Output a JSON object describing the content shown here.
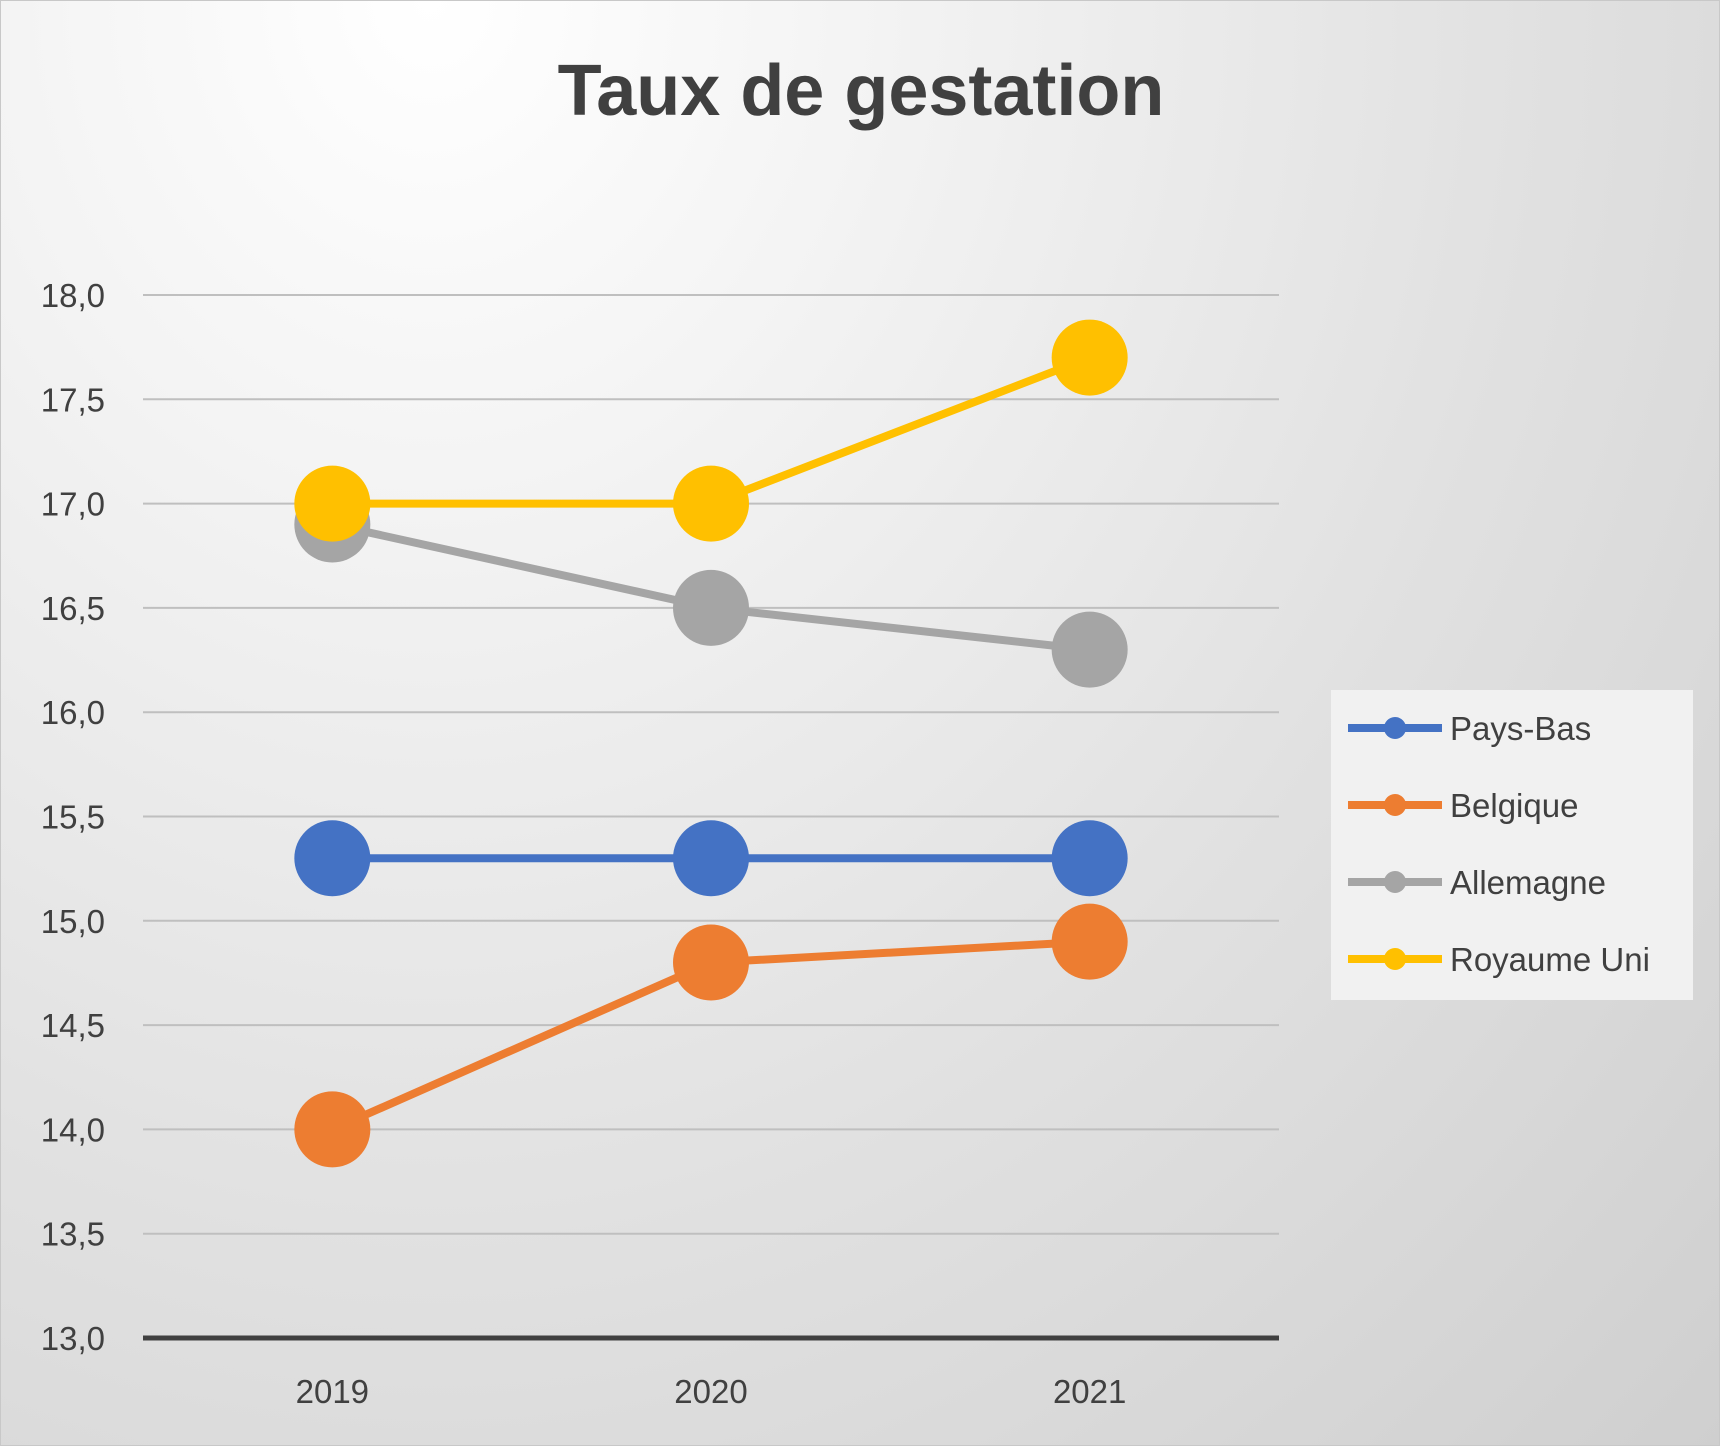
{
  "chart_data": {
    "type": "line",
    "title": "Taux de gestation",
    "xlabel": "",
    "ylabel": "",
    "categories": [
      "2019",
      "2020",
      "2021"
    ],
    "ylim": [
      13.0,
      18.0
    ],
    "yticks": [
      "13,0",
      "13,5",
      "14,0",
      "14,5",
      "15,0",
      "15,5",
      "16,0",
      "16,5",
      "17,0",
      "17,5",
      "18,0"
    ],
    "grid": true,
    "legend_position": "right",
    "series": [
      {
        "name": "Pays-Bas",
        "color": "#4472C4",
        "values": [
          15.3,
          15.3,
          15.3
        ]
      },
      {
        "name": "Belgique",
        "color": "#ED7D31",
        "values": [
          14.0,
          14.8,
          14.9
        ]
      },
      {
        "name": "Allemagne",
        "color": "#A5A5A5",
        "values": [
          16.9,
          16.5,
          16.3
        ]
      },
      {
        "name": "Royaume Uni",
        "color": "#FFC000",
        "values": [
          17.0,
          17.0,
          17.7
        ]
      }
    ]
  }
}
